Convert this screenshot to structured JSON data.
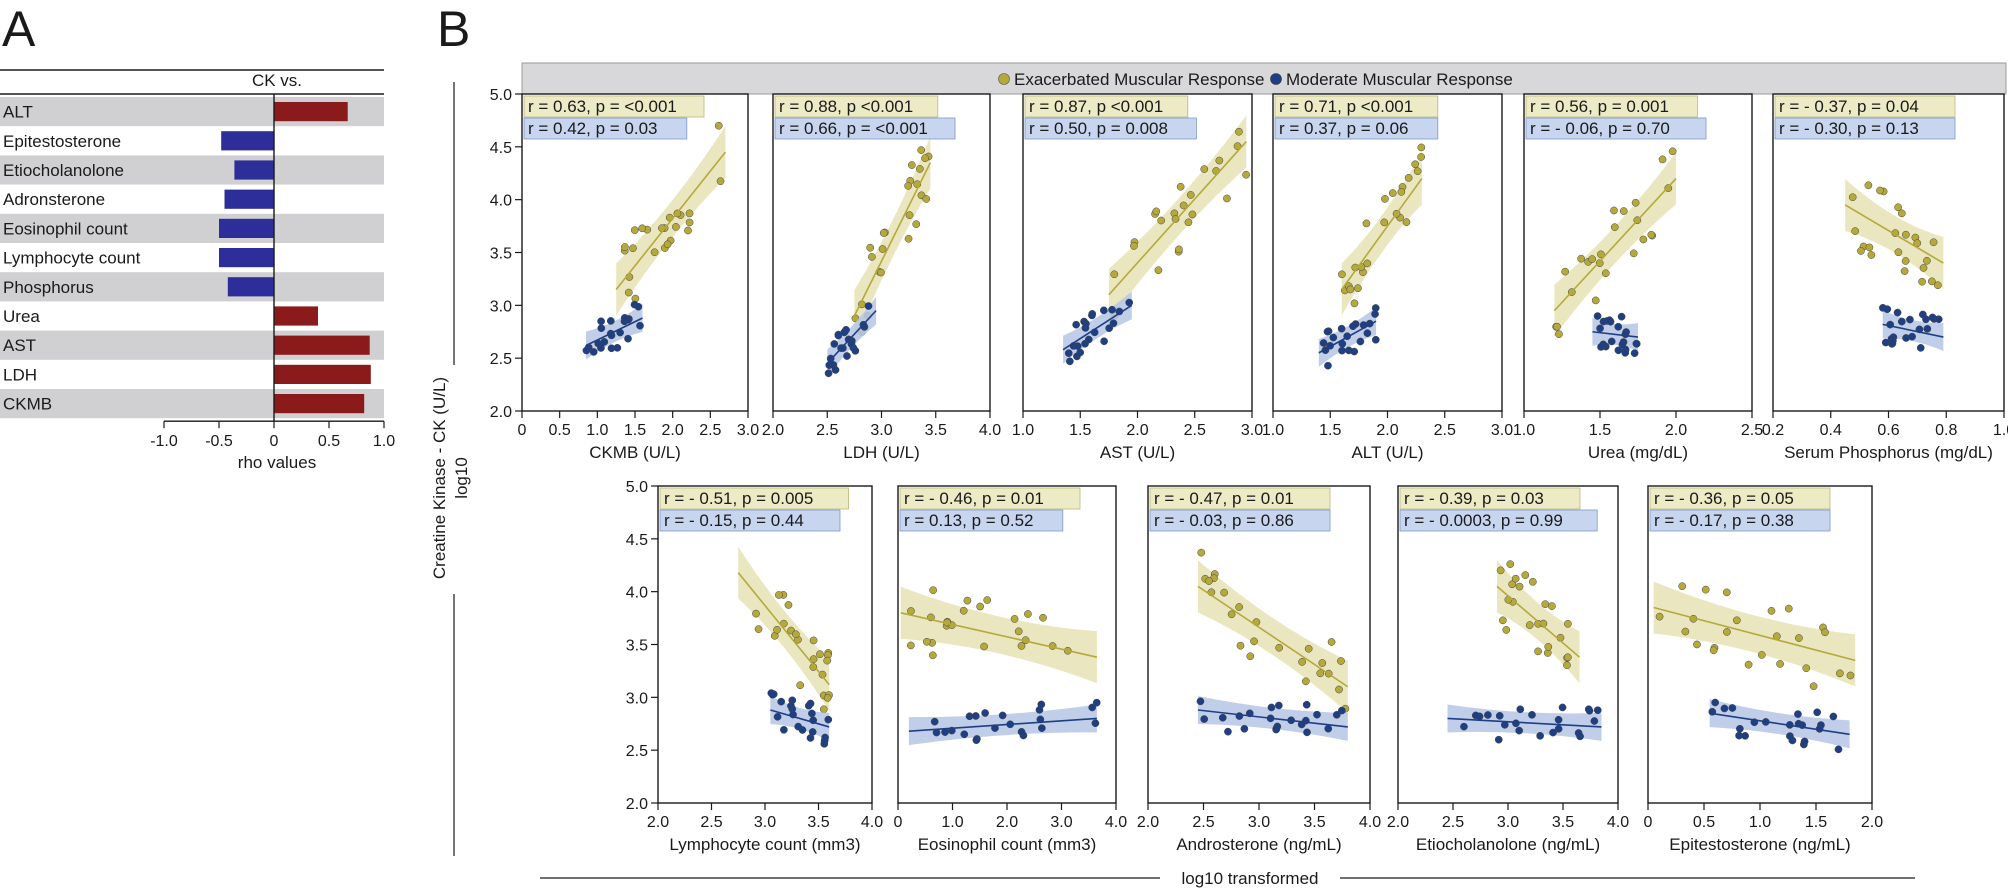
{
  "panels": {
    "a": {
      "letter": "A",
      "header": "CK vs.",
      "x_title": "rho values"
    },
    "b": {
      "letter": "B"
    }
  },
  "legend": {
    "exacerbated": "Exacerbated Muscular Response",
    "moderate": "Moderate Muscular Response"
  },
  "labels": {
    "y_title": "Creatine Kinase - CK (U/L)",
    "y_sub": "log10",
    "bottom": "log10 transformed"
  },
  "colors": {
    "positive_bar": "#8b1a1a",
    "negative_bar": "#2e2e9a",
    "exacerbated": "#b5a93a",
    "exacerbated_band": "#e6e2b4",
    "moderate": "#1f3f84",
    "moderate_band": "#b5c6e6",
    "stat_box_ex": "#ecebc6",
    "stat_box_mod": "#c7d5ef",
    "row_shade": "#d0d0d2"
  },
  "chart_data": [
    {
      "type": "bar",
      "orientation": "horizontal",
      "title": "CK vs.",
      "categories": [
        "ALT",
        "Epitestosterone",
        "Etiocholanolone",
        "Adronsterone",
        "Eosinophil count",
        "Lymphocyte count",
        "Phosphorus",
        "Urea",
        "AST",
        "LDH",
        "CKMB"
      ],
      "values": [
        0.67,
        -0.48,
        -0.36,
        -0.45,
        -0.5,
        -0.5,
        -0.42,
        0.4,
        0.87,
        0.88,
        0.82
      ],
      "xlim": [
        -1.0,
        1.0
      ],
      "xticks": [
        "-1.0",
        "-0.5",
        "0",
        "0.5",
        "1.0"
      ],
      "xlabel": "rho values"
    },
    {
      "type": "scatter",
      "xlabel": "CKMB (U/L)",
      "xlim": [
        0,
        3
      ],
      "ylim": [
        2,
        5
      ],
      "xticks": [
        "0",
        "0.5",
        "1.0",
        "1.5",
        "2.0",
        "2.5",
        "3.0"
      ],
      "yticks": [
        "2.0",
        "2.5",
        "3.0",
        "3.5",
        "4.0",
        "4.5",
        "5.0"
      ],
      "stats": [
        "r = 0.63, p = <0.001",
        "r = 0.42, p = 0.03"
      ],
      "fits": [
        {
          "series": "exacerbated",
          "x": [
            1.25,
            2.7
          ],
          "y": [
            3.15,
            4.45
          ]
        },
        {
          "series": "moderate",
          "x": [
            0.85,
            1.6
          ],
          "y": [
            2.62,
            2.88
          ]
        }
      ]
    },
    {
      "type": "scatter",
      "xlabel": "LDH (U/L)",
      "xlim": [
        2,
        4
      ],
      "ylim": [
        2,
        5
      ],
      "xticks": [
        "2.0",
        "2.5",
        "3.0",
        "3.5",
        "4.0"
      ],
      "stats": [
        "r = 0.88, p <0.001",
        "r = 0.66, p = <0.001"
      ],
      "fits": [
        {
          "series": "exacerbated",
          "x": [
            2.75,
            3.45
          ],
          "y": [
            2.9,
            4.35
          ]
        },
        {
          "series": "moderate",
          "x": [
            2.5,
            2.95
          ],
          "y": [
            2.45,
            2.95
          ]
        }
      ]
    },
    {
      "type": "scatter",
      "xlabel": "AST (U/L)",
      "xlim": [
        1,
        3
      ],
      "ylim": [
        2,
        5
      ],
      "xticks": [
        "1.0",
        "1.5",
        "2.0",
        "2.5",
        "3.0"
      ],
      "stats": [
        "r = 0.87, p <0.001",
        "r = 0.50, p = 0.008"
      ],
      "fits": [
        {
          "series": "exacerbated",
          "x": [
            1.75,
            2.95
          ],
          "y": [
            3.1,
            4.55
          ]
        },
        {
          "series": "moderate",
          "x": [
            1.35,
            1.95
          ],
          "y": [
            2.58,
            3.0
          ]
        }
      ]
    },
    {
      "type": "scatter",
      "xlabel": "ALT (U/L)",
      "xlim": [
        1,
        3
      ],
      "ylim": [
        2,
        5
      ],
      "xticks": [
        "1.0",
        "1.5",
        "2.0",
        "2.5",
        "3.0"
      ],
      "stats": [
        "r = 0.71, p <0.001",
        "r = 0.37, p = 0.06"
      ],
      "fits": [
        {
          "series": "exacerbated",
          "x": [
            1.6,
            2.3
          ],
          "y": [
            3.15,
            4.2
          ]
        },
        {
          "series": "moderate",
          "x": [
            1.4,
            1.9
          ],
          "y": [
            2.55,
            2.85
          ]
        }
      ]
    },
    {
      "type": "scatter",
      "xlabel": "Urea (mg/dL)",
      "xlim": [
        1,
        2.5
      ],
      "ylim": [
        2,
        5
      ],
      "xticks": [
        "1.0",
        "1.5",
        "2.0",
        "2.5"
      ],
      "stats": [
        "r = 0.56, p = 0.001",
        "r = - 0.06, p = 0.70"
      ],
      "fits": [
        {
          "series": "exacerbated",
          "x": [
            1.2,
            2.0
          ],
          "y": [
            2.95,
            4.2
          ]
        },
        {
          "series": "moderate",
          "x": [
            1.45,
            1.75
          ],
          "y": [
            2.75,
            2.7
          ]
        }
      ]
    },
    {
      "type": "scatter",
      "xlabel": "Serum Phosphorus (mg/dL)",
      "xlim": [
        0.2,
        1.0
      ],
      "ylim": [
        2,
        5
      ],
      "xticks": [
        "0.2",
        "0.4",
        "0.6",
        "0.8",
        "1.0"
      ],
      "stats": [
        "r = - 0.37, p = 0.04",
        "r = - 0.30, p = 0.13"
      ],
      "fits": [
        {
          "series": "exacerbated",
          "x": [
            0.45,
            0.79
          ],
          "y": [
            3.95,
            3.4
          ]
        },
        {
          "series": "moderate",
          "x": [
            0.58,
            0.79
          ],
          "y": [
            2.82,
            2.7
          ]
        }
      ]
    },
    {
      "type": "scatter",
      "xlabel": "Lymphocyte count (mm3)",
      "xlim": [
        2,
        4
      ],
      "ylim": [
        2,
        5
      ],
      "xticks": [
        "2.0",
        "2.5",
        "3.0",
        "3.5",
        "4.0"
      ],
      "yticks": [
        "2.0",
        "2.5",
        "3.0",
        "3.5",
        "4.0",
        "4.5",
        "5.0"
      ],
      "stats": [
        "r = - 0.51, p = 0.005",
        "r = - 0.15, p = 0.44"
      ],
      "fits": [
        {
          "series": "exacerbated",
          "x": [
            2.75,
            3.6
          ],
          "y": [
            4.18,
            3.12
          ]
        },
        {
          "series": "moderate",
          "x": [
            3.05,
            3.6
          ],
          "y": [
            2.88,
            2.72
          ]
        }
      ]
    },
    {
      "type": "scatter",
      "xlabel": "Eosinophil count (mm3)",
      "xlim": [
        0,
        4
      ],
      "ylim": [
        2,
        5
      ],
      "xticks": [
        "0",
        "1.0",
        "2.0",
        "3.0",
        "4.0"
      ],
      "stats": [
        "r = - 0.46, p = 0.01",
        "r = 0.13, p = 0.52"
      ],
      "fits": [
        {
          "series": "exacerbated",
          "x": [
            0.05,
            3.65
          ],
          "y": [
            3.8,
            3.38
          ]
        },
        {
          "series": "moderate",
          "x": [
            0.2,
            3.65
          ],
          "y": [
            2.68,
            2.8
          ]
        }
      ]
    },
    {
      "type": "scatter",
      "xlabel": "Androsterone (ng/mL)",
      "xlim": [
        2,
        4
      ],
      "ylim": [
        2,
        5
      ],
      "xticks": [
        "2.0",
        "2.5",
        "3.0",
        "3.5",
        "4.0"
      ],
      "stats": [
        "r = - 0.47, p = 0.01",
        "r = - 0.03, p = 0.86"
      ],
      "fits": [
        {
          "series": "exacerbated",
          "x": [
            2.45,
            3.8
          ],
          "y": [
            4.05,
            3.1
          ]
        },
        {
          "series": "moderate",
          "x": [
            2.45,
            3.8
          ],
          "y": [
            2.88,
            2.72
          ]
        }
      ]
    },
    {
      "type": "scatter",
      "xlabel": "Etiocholanolone (ng/mL)",
      "xlim": [
        2,
        4
      ],
      "ylim": [
        2,
        5
      ],
      "xticks": [
        "2.0",
        "2.5",
        "3.0",
        "3.5",
        "4.0"
      ],
      "stats": [
        "r = - 0.39, p = 0.03",
        "r = - 0.0003, p = 0.99"
      ],
      "fits": [
        {
          "series": "exacerbated",
          "x": [
            2.9,
            3.65
          ],
          "y": [
            4.05,
            3.38
          ]
        },
        {
          "series": "moderate",
          "x": [
            2.45,
            3.85
          ],
          "y": [
            2.8,
            2.72
          ]
        }
      ]
    },
    {
      "type": "scatter",
      "xlabel": "Epitestosterone (ng/mL)",
      "xlim": [
        0,
        2
      ],
      "ylim": [
        2,
        5
      ],
      "xticks": [
        "0",
        "0.5",
        "1.0",
        "1.5",
        "2.0"
      ],
      "stats": [
        "r = - 0.36, p = 0.05",
        "r = - 0.17, p = 0.38"
      ],
      "fits": [
        {
          "series": "exacerbated",
          "x": [
            0.05,
            1.85
          ],
          "y": [
            3.85,
            3.35
          ]
        },
        {
          "series": "moderate",
          "x": [
            0.55,
            1.8
          ],
          "y": [
            2.85,
            2.65
          ]
        }
      ]
    }
  ]
}
